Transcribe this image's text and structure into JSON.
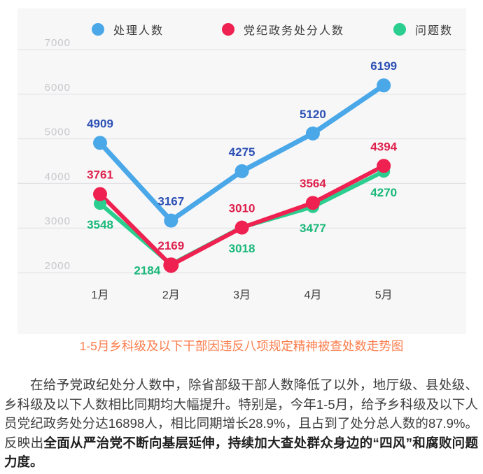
{
  "chart_data": {
    "type": "line",
    "categories": [
      "1月",
      "2月",
      "3月",
      "4月",
      "5月"
    ],
    "series": [
      {
        "name": "处理人数",
        "color": "#4aa7e8",
        "label_color": "#2c50b4",
        "values": [
          4909,
          3167,
          4275,
          5120,
          6199
        ],
        "label_pos": "above"
      },
      {
        "name": "党纪政务处分人数",
        "color": "#ee2150",
        "label_color": "#df204c",
        "values": [
          3761,
          2169,
          3010,
          3564,
          4394
        ],
        "label_pos": "above"
      },
      {
        "name": "问题数",
        "color": "#2bce8e",
        "label_color": "#18b878",
        "values": [
          3548,
          2184,
          3018,
          3477,
          4270
        ],
        "label_pos": "below",
        "label_offsets": {
          "1": [
            -34,
            14
          ]
        }
      }
    ],
    "ylim": [
      2000,
      7000
    ],
    "yticks": [
      7000,
      6000,
      5000,
      4000,
      3000,
      2000
    ],
    "grid": true,
    "legend_position": "top",
    "xlabel": "",
    "ylabel": "",
    "title": ""
  },
  "caption": {
    "text": "1-5月乡科级及以下干部因违反八项规定精神被查处数走势图",
    "color": "#fb7e4e"
  },
  "paragraph": {
    "regular": "在给予党政纪处分人数中，除省部级干部人数降低了以外，地厅级、县处级、乡科级及以下人数相比同期均大幅提升。特别是，今年1-5月，给予乡科级及以下人员党纪政务处分达16898人，相比同期增长28.9%，且占到了处分总人数的87.9%。反映出",
    "bold": "全面从严治党不断向基层延伸，持续加大查处群众身边的“四风”和腐败问题力度。"
  },
  "colors": {
    "chart_background": "#f7f7f8",
    "page_background": "#ffffff",
    "gridline": "#e0e0e4",
    "y_tick_label": "#c7c7cb",
    "x_tick_label": "#3b3b3b",
    "legend_text": "#3a3a3a"
  }
}
